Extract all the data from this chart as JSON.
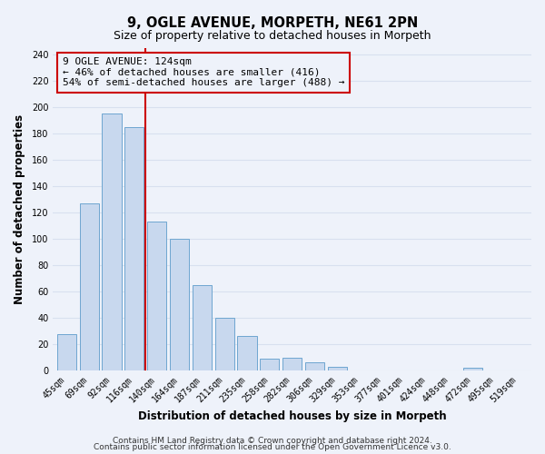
{
  "title": "9, OGLE AVENUE, MORPETH, NE61 2PN",
  "subtitle": "Size of property relative to detached houses in Morpeth",
  "xlabel": "Distribution of detached houses by size in Morpeth",
  "ylabel": "Number of detached properties",
  "bar_labels": [
    "45sqm",
    "69sqm",
    "92sqm",
    "116sqm",
    "140sqm",
    "164sqm",
    "187sqm",
    "211sqm",
    "235sqm",
    "258sqm",
    "282sqm",
    "306sqm",
    "329sqm",
    "353sqm",
    "377sqm",
    "401sqm",
    "424sqm",
    "448sqm",
    "472sqm",
    "495sqm",
    "519sqm"
  ],
  "bar_values": [
    28,
    127,
    195,
    185,
    113,
    100,
    65,
    40,
    26,
    9,
    10,
    6,
    3,
    0,
    0,
    0,
    0,
    0,
    2,
    0,
    0
  ],
  "bar_color": "#c8d8ee",
  "bar_edge_color": "#6ea6d0",
  "vline_x_index": 3,
  "vline_color": "#cc0000",
  "annotation_line1": "9 OGLE AVENUE: 124sqm",
  "annotation_line2": "← 46% of detached houses are smaller (416)",
  "annotation_line3": "54% of semi-detached houses are larger (488) →",
  "ylim": [
    0,
    245
  ],
  "yticks": [
    0,
    20,
    40,
    60,
    80,
    100,
    120,
    140,
    160,
    180,
    200,
    220,
    240
  ],
  "footer_line1": "Contains HM Land Registry data © Crown copyright and database right 2024.",
  "footer_line2": "Contains public sector information licensed under the Open Government Licence v3.0.",
  "background_color": "#eef2fa",
  "grid_color": "#d8e0ef",
  "title_fontsize": 10.5,
  "subtitle_fontsize": 9,
  "axis_label_fontsize": 8.5,
  "tick_fontsize": 7,
  "annotation_fontsize": 8,
  "footer_fontsize": 6.5
}
